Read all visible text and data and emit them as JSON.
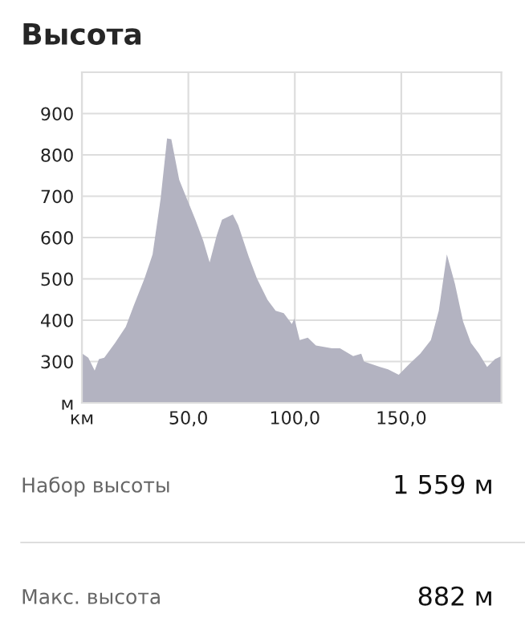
{
  "chart_data": {
    "type": "area",
    "title": "Высота",
    "x": [
      0,
      3,
      6,
      8,
      10.5,
      15.6,
      20.6,
      24.4,
      29.4,
      33.2,
      37,
      40,
      42,
      45.7,
      48.2,
      53.3,
      57,
      60,
      63.3,
      65.8,
      70.9,
      73.4,
      78.4,
      82.2,
      87.2,
      91,
      94.8,
      98.6,
      99.8,
      102.3,
      106.1,
      109.9,
      117.4,
      121.2,
      127.4,
      131.2,
      132.5,
      140,
      143.8,
      148.8,
      153.8,
      158.9,
      163.9,
      167.6,
      171.4,
      175.2,
      179,
      182.7,
      186.5,
      190.3,
      194,
      197
    ],
    "series": [
      {
        "color": "#b3b3c1",
        "values": [
          320,
          309,
          278,
          306,
          309,
          345,
          384,
          436,
          501,
          559,
          695,
          840,
          838,
          740,
          708,
          643,
          592,
          540,
          605,
          643,
          656,
          630,
          553,
          501,
          449,
          423,
          417,
          391,
          404,
          352,
          358,
          339,
          332,
          332,
          313,
          319,
          300,
          287,
          281,
          268,
          294,
          319,
          352,
          423,
          559,
          488,
          397,
          345,
          319,
          287,
          306,
          313
        ]
      }
    ],
    "xlim": [
      0,
      197
    ],
    "xticks": [
      {
        "value": 0,
        "label": "км"
      },
      {
        "value": 50,
        "label": "50,0"
      },
      {
        "value": 100,
        "label": "100,0"
      },
      {
        "value": 150,
        "label": "150,0"
      }
    ],
    "ylim": [
      200,
      1000
    ],
    "yticks": [
      {
        "value": 200,
        "label": "м"
      },
      300,
      400,
      500,
      600,
      700,
      800,
      900,
      {
        "value": 1000,
        "label": null
      }
    ],
    "grid": true,
    "annotations": [
      "Набор высоты",
      "1 559 м",
      "Макс. высота",
      "882 м"
    ]
  }
}
